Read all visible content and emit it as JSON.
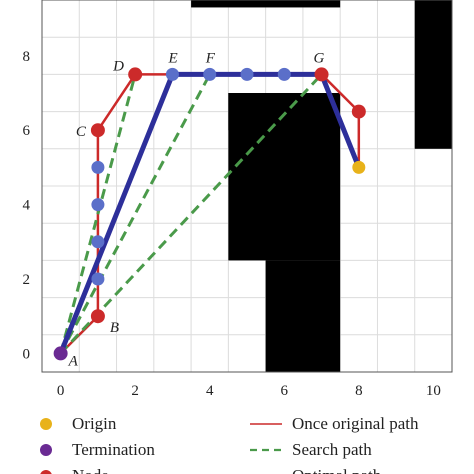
{
  "chart_data": {
    "type": "path-planning-grid",
    "xlim": [
      -0.5,
      10.5
    ],
    "ylim": [
      -0.5,
      9.5
    ],
    "x_ticks": [
      "0",
      "2",
      "4",
      "6",
      "8",
      "10"
    ],
    "y_ticks": [
      "0",
      "2",
      "4",
      "6",
      "8"
    ],
    "grid": true,
    "obstacles": [
      {
        "x": [
          3.5,
          7.5
        ],
        "y": [
          9.3,
          9.5
        ]
      },
      {
        "x": [
          4.5,
          7.5
        ],
        "y": [
          2.5,
          7.0
        ]
      },
      {
        "x": [
          4.5,
          5.5
        ],
        "y": [
          6.0,
          7.0
        ]
      },
      {
        "x": [
          5.5,
          7.5
        ],
        "y": [
          -0.5,
          2.5
        ]
      },
      {
        "x": [
          9.5,
          10.5
        ],
        "y": [
          5.5,
          9.5
        ]
      }
    ],
    "labeled_points": [
      {
        "label": "A",
        "x": 0,
        "y": 0
      },
      {
        "label": "B",
        "x": 1,
        "y": 1
      },
      {
        "label": "C",
        "x": 1,
        "y": 6
      },
      {
        "label": "D",
        "x": 2,
        "y": 7.5
      },
      {
        "label": "E",
        "x": 3,
        "y": 7.5
      },
      {
        "label": "F",
        "x": 4,
        "y": 7.5
      },
      {
        "label": "G",
        "x": 7,
        "y": 7.5
      }
    ],
    "series": [
      {
        "name": "Once original path",
        "color": "#cc2a2a",
        "x": [
          0,
          1,
          1,
          2,
          3,
          7,
          8,
          8
        ],
        "y": [
          0,
          1,
          6,
          7.5,
          7.5,
          7.5,
          6.5,
          5
        ]
      },
      {
        "name": "Search path",
        "color": "#4a9a4a",
        "segments": [
          {
            "x": [
              0,
              2
            ],
            "y": [
              0,
              7.5
            ]
          },
          {
            "x": [
              0,
              4
            ],
            "y": [
              0,
              7.5
            ]
          },
          {
            "x": [
              0,
              7
            ],
            "y": [
              0,
              7.5
            ]
          }
        ]
      },
      {
        "name": "Optimal path",
        "color": "#2d2f9a",
        "x": [
          0,
          3,
          7,
          8
        ],
        "y": [
          0,
          7.5,
          7.5,
          5
        ]
      }
    ],
    "node_points_red": [
      {
        "x": 1,
        "y": 1
      },
      {
        "x": 1,
        "y": 6
      },
      {
        "x": 2,
        "y": 7.5
      },
      {
        "x": 7,
        "y": 7.5
      },
      {
        "x": 8,
        "y": 6.5
      }
    ],
    "node_points_blue": [
      {
        "x": 1,
        "y": 5
      },
      {
        "x": 1,
        "y": 4
      },
      {
        "x": 1,
        "y": 3
      },
      {
        "x": 1,
        "y": 2
      },
      {
        "x": 3,
        "y": 7.5
      },
      {
        "x": 4,
        "y": 7.5
      },
      {
        "x": 5,
        "y": 7.5
      },
      {
        "x": 6,
        "y": 7.5
      }
    ],
    "origin_point": {
      "x": 8,
      "y": 5
    },
    "termination_point": {
      "x": 0,
      "y": 0
    },
    "legend": {
      "placement": "bottom",
      "items": [
        {
          "kind": "dot",
          "color": "#e8b21a",
          "label": "Origin"
        },
        {
          "kind": "line",
          "color": "#cc2a2a",
          "label": "Once original path"
        },
        {
          "kind": "dot",
          "color": "#6a2a93",
          "label": "Termination"
        },
        {
          "kind": "dash",
          "color": "#4a9a4a",
          "label": "Search path"
        },
        {
          "kind": "dot",
          "color": "#cc2a2a",
          "label": "Node"
        },
        {
          "kind": "line",
          "color": "#2d2f9a",
          "label": "Optimal path"
        }
      ]
    }
  }
}
